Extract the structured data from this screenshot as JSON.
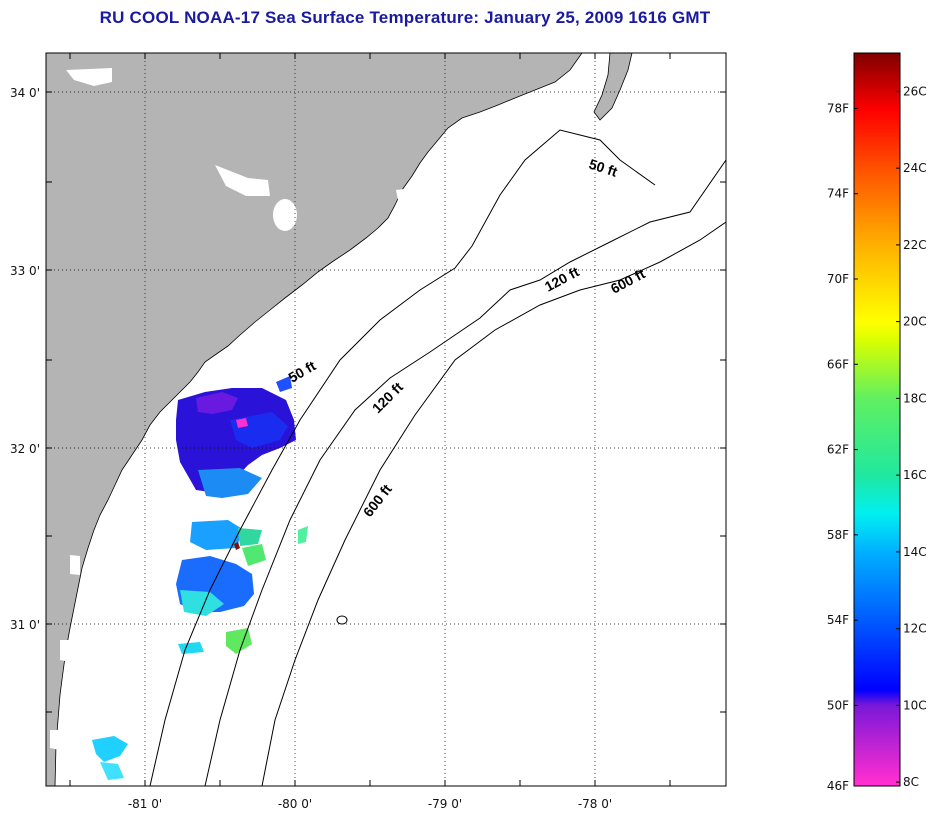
{
  "title": "RU COOL  NOAA-17  Sea Surface Temperature:  January 25, 2009 1616 GMT",
  "map": {
    "lat_ticks": [
      "34 0'",
      "33 0'",
      "32 0'",
      "31 0'"
    ],
    "lon_ticks": [
      "-81 0'",
      "-80 0'",
      "-79 0'",
      "-78 0'"
    ],
    "grid": true,
    "land_color": "#b4b4b4",
    "ocean_color": "#ffffff",
    "isobaths": [
      {
        "label": "50 ft"
      },
      {
        "label": "120 ft"
      },
      {
        "label": "600 ft"
      }
    ],
    "isobath_labels": [
      "50 ft",
      "50 ft",
      "120 ft",
      "120 ft",
      "600 ft",
      "600 ft"
    ]
  },
  "colorbar": {
    "fahrenheit_labels": [
      "78F",
      "74F",
      "70F",
      "66F",
      "62F",
      "58F",
      "54F",
      "50F",
      "46F"
    ],
    "celsius_labels": [
      "26C",
      "24C",
      "22C",
      "20C",
      "18C",
      "16C",
      "14C",
      "12C",
      "10C",
      "8C"
    ],
    "scale_stops": [
      {
        "c": 8,
        "color": "#ff2ed0"
      },
      {
        "c": 10,
        "color": "#7a18d8"
      },
      {
        "c": 10.4,
        "color": "#0000ff"
      },
      {
        "c": 12,
        "color": "#0050ff"
      },
      {
        "c": 14,
        "color": "#00b0ff"
      },
      {
        "c": 15,
        "color": "#00f0f0"
      },
      {
        "c": 16,
        "color": "#20e8a0"
      },
      {
        "c": 18,
        "color": "#60f060"
      },
      {
        "c": 19.5,
        "color": "#d8ff00"
      },
      {
        "c": 20,
        "color": "#ffff00"
      },
      {
        "c": 22,
        "color": "#ffb000"
      },
      {
        "c": 24,
        "color": "#ff5000"
      },
      {
        "c": 25.5,
        "color": "#ff0000"
      },
      {
        "c": 27,
        "color": "#800000"
      }
    ]
  }
}
